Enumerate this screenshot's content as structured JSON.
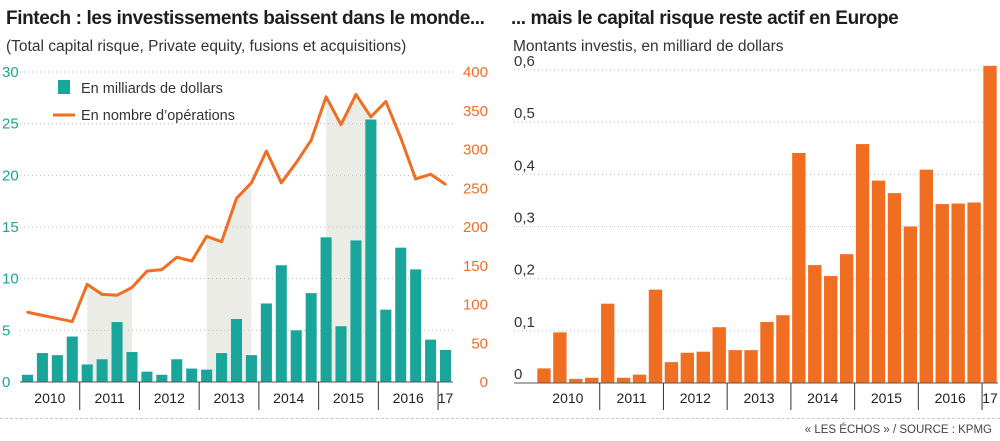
{
  "left": {
    "title": "Fintech : les investissements baissent dans le monde...",
    "subtitle": "(Total capital risque, Private equity, fusions et acquisitions)"
  },
  "right": {
    "title": "... mais le capital risque reste actif en Europe",
    "subtitle": "Montants investis, en milliard de dollars"
  },
  "source": "« LES ÉCHOS » / SOURCE : KPMG",
  "colors": {
    "teal": "#19a59a",
    "orange": "#ef6e22",
    "shade": "#ecece6",
    "grid": "#bdbdbd"
  },
  "chart_data": [
    {
      "type": "bar",
      "title": "Fintech : les investissements baissent dans le monde...",
      "subtitle": "(Total capital risque, Private equity, fusions et acquisitions)",
      "period_labels": [
        "2010",
        "2011",
        "2012",
        "2013",
        "2014",
        "2015",
        "2016",
        "17"
      ],
      "quarters_per_period": [
        4,
        4,
        4,
        4,
        4,
        4,
        4,
        1
      ],
      "y_left": {
        "ticks": [
          "0",
          "5",
          "10",
          "15",
          "20",
          "25",
          "30"
        ],
        "range": [
          0,
          30
        ]
      },
      "y_right": {
        "ticks": [
          "0",
          "50",
          "100",
          "150",
          "200",
          "250",
          "300",
          "350",
          "400"
        ],
        "range": [
          0,
          400
        ]
      },
      "legend": {
        "placement": "top-left"
      },
      "series": [
        {
          "name": "En milliards de dollars",
          "type": "bar",
          "axis": "left",
          "values": [
            0.7,
            2.8,
            2.6,
            4.4,
            1.7,
            2.2,
            5.8,
            2.9,
            1.0,
            0.7,
            2.2,
            1.3,
            1.2,
            2.8,
            6.1,
            2.6,
            7.6,
            11.3,
            5.0,
            8.6,
            14.0,
            5.4,
            13.7,
            25.4,
            7.0,
            13.0,
            10.9,
            4.1,
            3.1
          ]
        },
        {
          "name": "En nombre d’opérations",
          "type": "line",
          "axis": "right",
          "values": [
            90,
            86,
            82,
            78,
            126,
            113,
            112,
            122,
            143,
            145,
            161,
            156,
            188,
            181,
            237,
            257,
            298,
            257,
            283,
            312,
            368,
            332,
            371,
            342,
            362,
            315,
            262,
            268,
            255
          ]
        }
      ]
    },
    {
      "type": "bar",
      "title": "... mais le capital risque reste actif en Europe",
      "subtitle": "Montants investis, en milliard de dollars",
      "period_labels": [
        "2010",
        "2011",
        "2012",
        "2013",
        "2014",
        "2015",
        "2016",
        "17"
      ],
      "quarters_per_period": [
        4,
        4,
        4,
        4,
        4,
        4,
        4,
        1
      ],
      "y": {
        "ticks": [
          "0",
          "0,1",
          "0,2",
          "0,3",
          "0,4",
          "0,5",
          "0,6"
        ],
        "range": [
          0,
          0.6
        ]
      },
      "series": [
        {
          "name": "",
          "type": "bar",
          "values": [
            0.028,
            0.097,
            0.008,
            0.01,
            0.152,
            0.01,
            0.016,
            0.179,
            0.04,
            0.058,
            0.06,
            0.107,
            0.063,
            0.063,
            0.117,
            0.13,
            0.441,
            0.226,
            0.205,
            0.247,
            0.458,
            0.388,
            0.364,
            0.3,
            0.409,
            0.343,
            0.344,
            0.346,
            0.608
          ]
        }
      ]
    }
  ]
}
